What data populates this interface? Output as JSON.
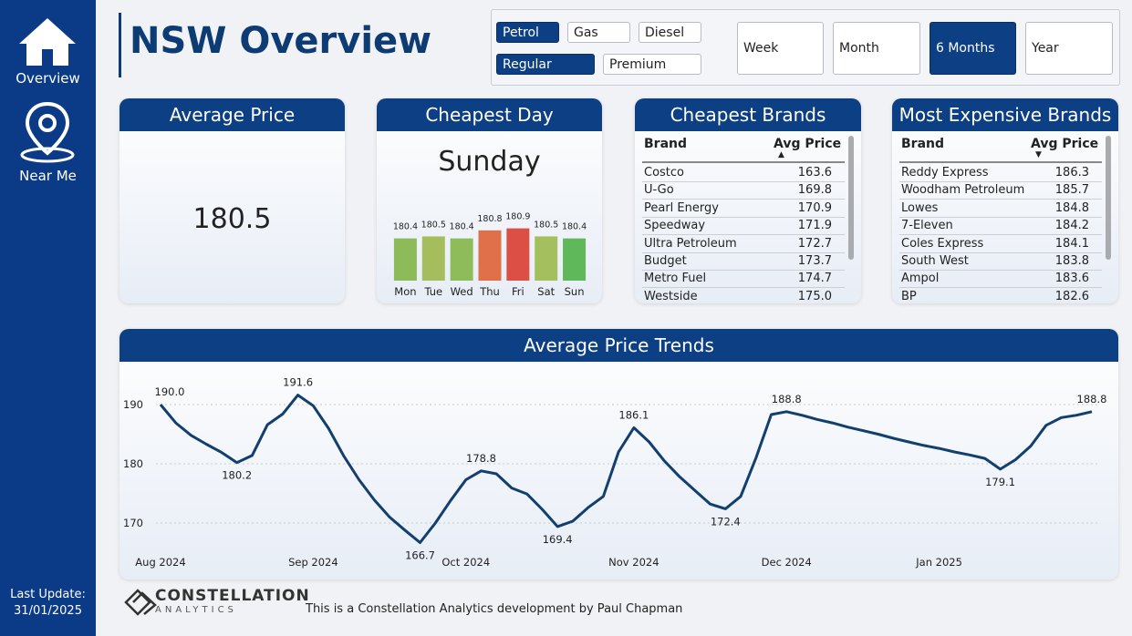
{
  "sidebar": {
    "nav": [
      {
        "label": "Overview"
      },
      {
        "label": "Near Me"
      }
    ],
    "last_update_label": "Last Update:",
    "last_update_date": "31/01/2025"
  },
  "header": {
    "title": "NSW Overview"
  },
  "filters": {
    "fuel_types": [
      {
        "label": "Petrol",
        "selected": true
      },
      {
        "label": "Gas",
        "selected": false
      },
      {
        "label": "Diesel",
        "selected": false
      }
    ],
    "grades": [
      {
        "label": "Regular",
        "selected": true
      },
      {
        "label": "Premium",
        "selected": false
      }
    ],
    "periods": [
      {
        "label": "Week",
        "selected": false
      },
      {
        "label": "Month",
        "selected": false
      },
      {
        "label": "6 Months",
        "selected": true
      },
      {
        "label": "Year",
        "selected": false
      }
    ]
  },
  "cards": {
    "average_price": {
      "title": "Average Price",
      "value": "180.5"
    },
    "cheapest_day": {
      "title": "Cheapest Day",
      "day": "Sunday"
    }
  },
  "tables": {
    "cheapest_brands": {
      "title": "Cheapest Brands",
      "columns": [
        "Brand",
        "Avg Price"
      ],
      "sort": "ascending",
      "rows": [
        [
          "Costco",
          "163.6"
        ],
        [
          "U-Go",
          "169.8"
        ],
        [
          "Pearl Energy",
          "170.9"
        ],
        [
          "Speedway",
          "171.9"
        ],
        [
          "Ultra Petroleum",
          "172.7"
        ],
        [
          "Budget",
          "173.7"
        ],
        [
          "Metro Fuel",
          "174.7"
        ],
        [
          "Westside",
          "175.0"
        ]
      ]
    },
    "most_expensive_brands": {
      "title": "Most Expensive Brands",
      "columns": [
        "Brand",
        "Avg Price"
      ],
      "sort": "descending",
      "rows": [
        [
          "Reddy Express",
          "186.3"
        ],
        [
          "Woodham Petroleum",
          "185.7"
        ],
        [
          "Lowes",
          "184.8"
        ],
        [
          "7-Eleven",
          "184.2"
        ],
        [
          "Coles Express",
          "184.1"
        ],
        [
          "South West",
          "183.8"
        ],
        [
          "Ampol",
          "183.6"
        ],
        [
          "BP",
          "182.6"
        ]
      ]
    }
  },
  "chart_data": [
    {
      "type": "bar",
      "categories": [
        "Mon",
        "Tue",
        "Wed",
        "Thu",
        "Fri",
        "Sat",
        "Sun"
      ],
      "values": [
        180.4,
        180.5,
        180.4,
        180.8,
        180.9,
        180.5,
        180.4
      ],
      "colors": [
        "#8dbb5a",
        "#a5bd5c",
        "#8fbc5b",
        "#e0704a",
        "#dc4f45",
        "#a4bf5d",
        "#5fb85a"
      ],
      "ylim": [
        178.3,
        181.2
      ]
    },
    {
      "type": "line",
      "title": "Average Price Trends",
      "categories": [
        "Aug 2024",
        null,
        null,
        null,
        null,
        null,
        null,
        null,
        null,
        null,
        "Sep 2024",
        null,
        null,
        null,
        null,
        null,
        null,
        null,
        null,
        null,
        "Oct 2024",
        null,
        null,
        null,
        null,
        null,
        null,
        null,
        null,
        null,
        null,
        "Nov 2024",
        null,
        null,
        null,
        null,
        null,
        null,
        null,
        null,
        null,
        "Dec 2024",
        null,
        null,
        null,
        null,
        null,
        null,
        null,
        null,
        null,
        "Jan 2025",
        null,
        null,
        null,
        null,
        null,
        null,
        null,
        null,
        null,
        null
      ],
      "series": [
        {
          "name": "Average Price",
          "color": "#123f6e",
          "values": [
            190.0,
            186.9,
            184.8,
            183.3,
            181.9,
            180.2,
            181.4,
            186.6,
            188.4,
            191.6,
            189.8,
            186.0,
            181.3,
            177.3,
            173.9,
            171.0,
            168.8,
            166.7,
            170.0,
            173.8,
            177.3,
            178.8,
            178.3,
            175.9,
            174.9,
            172.3,
            169.4,
            170.3,
            172.6,
            174.5,
            182.0,
            186.1,
            183.7,
            180.5,
            177.8,
            175.5,
            173.2,
            172.4,
            174.5,
            181.0,
            188.3,
            188.8,
            188.2,
            187.5,
            186.9,
            186.2,
            185.6,
            185.0,
            184.3,
            183.7,
            183.1,
            182.6,
            182.0,
            181.5,
            180.9,
            179.1,
            180.7,
            183.0,
            186.5,
            187.8,
            188.2,
            188.8
          ],
          "value_labels": [
            "190.0",
            null,
            null,
            null,
            null,
            "180.2",
            null,
            null,
            null,
            "191.6",
            null,
            null,
            null,
            null,
            null,
            null,
            null,
            "166.7",
            null,
            null,
            null,
            "178.8",
            null,
            null,
            null,
            null,
            "169.4",
            null,
            null,
            null,
            null,
            "186.1",
            null,
            null,
            null,
            null,
            null,
            "172.4",
            null,
            null,
            null,
            "188.8",
            null,
            null,
            null,
            null,
            null,
            null,
            null,
            null,
            null,
            null,
            null,
            null,
            null,
            "179.1",
            null,
            null,
            null,
            null,
            null,
            "188.8"
          ]
        }
      ],
      "ylim": [
        165,
        196
      ],
      "yticks": [
        170,
        180,
        190
      ],
      "grid": true
    }
  ],
  "footer": {
    "logo_name": "CONSTELLATION",
    "logo_sub": "ANALYTICS",
    "credit": "This is a Constellation Analytics development by Paul Chapman"
  }
}
